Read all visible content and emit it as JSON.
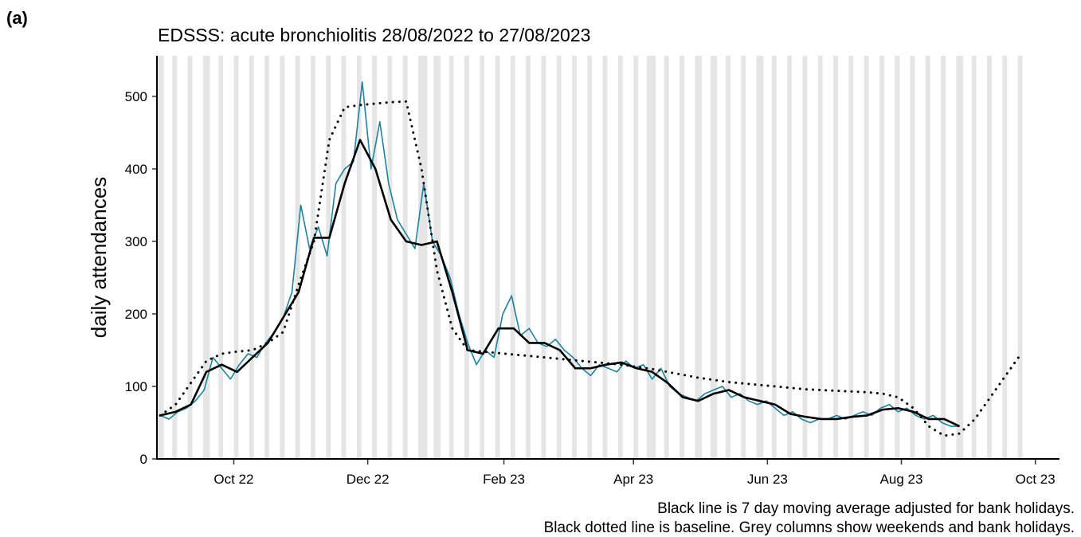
{
  "chart_data": {
    "type": "line",
    "panel_label": "(a)",
    "title": "EDSSS: acute bronchiolitis 28/08/2022 to 27/08/2023",
    "ylabel": "daily attendances",
    "caption": [
      "Black line is 7 day moving average adjusted for bank holidays.",
      "Black dotted line is baseline. Grey columns show weekends and bank holidays."
    ],
    "xlim": [
      "2022-08-27",
      "2023-10-12"
    ],
    "xticks": [
      {
        "value": "2022-10-01",
        "label": "Oct 22"
      },
      {
        "value": "2022-12-01",
        "label": "Dec 22"
      },
      {
        "value": "2023-02-01",
        "label": "Feb 23"
      },
      {
        "value": "2023-04-01",
        "label": "Apr 23"
      },
      {
        "value": "2023-06-01",
        "label": "Jun 23"
      },
      {
        "value": "2023-08-01",
        "label": "Aug 23"
      },
      {
        "value": "2023-10-01",
        "label": "Oct 23"
      }
    ],
    "ylim": [
      0,
      556
    ],
    "yticks": [
      0,
      100,
      200,
      300,
      400,
      500
    ],
    "shading": {
      "color": "#e5e5e5",
      "weekends": true,
      "bank_holidays": [
        "2022-08-29",
        "2022-09-19",
        "2022-12-26",
        "2022-12-27",
        "2023-01-02",
        "2023-04-07",
        "2023-04-10",
        "2023-05-01",
        "2023-05-08",
        "2023-05-29",
        "2023-08-28"
      ]
    },
    "series": [
      {
        "color": "#1a84a0",
        "line_style": "thin",
        "x": [
          "2022-08-28",
          "2022-09-01",
          "2022-09-05",
          "2022-09-09",
          "2022-09-13",
          "2022-09-17",
          "2022-09-21",
          "2022-09-25",
          "2022-09-29",
          "2022-10-03",
          "2022-10-07",
          "2022-10-11",
          "2022-10-15",
          "2022-10-19",
          "2022-10-23",
          "2022-10-27",
          "2022-10-31",
          "2022-11-04",
          "2022-11-08",
          "2022-11-12",
          "2022-11-16",
          "2022-11-20",
          "2022-11-24",
          "2022-11-28",
          "2022-12-02",
          "2022-12-06",
          "2022-12-10",
          "2022-12-14",
          "2022-12-18",
          "2022-12-22",
          "2022-12-26",
          "2022-12-30",
          "2023-01-03",
          "2023-01-07",
          "2023-01-11",
          "2023-01-15",
          "2023-01-19",
          "2023-01-23",
          "2023-01-27",
          "2023-01-31",
          "2023-02-04",
          "2023-02-08",
          "2023-02-12",
          "2023-02-16",
          "2023-02-20",
          "2023-02-24",
          "2023-02-28",
          "2023-03-04",
          "2023-03-08",
          "2023-03-12",
          "2023-03-16",
          "2023-03-20",
          "2023-03-24",
          "2023-03-28",
          "2023-04-01",
          "2023-04-05",
          "2023-04-09",
          "2023-04-13",
          "2023-04-17",
          "2023-04-21",
          "2023-04-25",
          "2023-04-29",
          "2023-05-03",
          "2023-05-07",
          "2023-05-11",
          "2023-05-15",
          "2023-05-19",
          "2023-05-23",
          "2023-05-27",
          "2023-05-31",
          "2023-06-04",
          "2023-06-08",
          "2023-06-12",
          "2023-06-16",
          "2023-06-20",
          "2023-06-24",
          "2023-06-28",
          "2023-07-02",
          "2023-07-06",
          "2023-07-10",
          "2023-07-14",
          "2023-07-18",
          "2023-07-22",
          "2023-07-26",
          "2023-07-30",
          "2023-08-03",
          "2023-08-07",
          "2023-08-11",
          "2023-08-15",
          "2023-08-19",
          "2023-08-23",
          "2023-08-27"
        ],
        "values": [
          60,
          55,
          65,
          70,
          80,
          95,
          140,
          125,
          110,
          130,
          145,
          140,
          160,
          175,
          195,
          230,
          350,
          290,
          320,
          280,
          380,
          400,
          410,
          520,
          400,
          465,
          380,
          330,
          310,
          290,
          380,
          300,
          280,
          250,
          200,
          160,
          130,
          150,
          140,
          200,
          225,
          170,
          180,
          160,
          155,
          165,
          150,
          140,
          125,
          115,
          130,
          125,
          120,
          135,
          125,
          130,
          110,
          125,
          100,
          90,
          85,
          80,
          90,
          95,
          100,
          85,
          90,
          80,
          75,
          80,
          70,
          60,
          65,
          55,
          50,
          55,
          55,
          60,
          55,
          60,
          65,
          60,
          70,
          75,
          65,
          70,
          60,
          55,
          60,
          50,
          45,
          45
        ]
      },
      {
        "color": "#000000",
        "line_style": "dotted",
        "x": [
          "2022-08-28",
          "2022-09-04",
          "2022-09-11",
          "2022-09-18",
          "2022-09-25",
          "2022-10-02",
          "2022-10-09",
          "2022-10-16",
          "2022-10-23",
          "2022-10-30",
          "2022-11-06",
          "2022-11-13",
          "2022-11-20",
          "2022-11-27",
          "2022-12-04",
          "2022-12-11",
          "2022-12-18",
          "2022-12-25",
          "2023-01-01",
          "2023-01-08",
          "2023-01-15",
          "2023-01-22",
          "2023-01-29",
          "2023-02-05",
          "2023-02-12",
          "2023-02-19",
          "2023-02-26",
          "2023-03-05",
          "2023-03-12",
          "2023-03-19",
          "2023-03-26",
          "2023-04-02",
          "2023-04-09",
          "2023-04-16",
          "2023-04-23",
          "2023-04-30",
          "2023-05-07",
          "2023-05-14",
          "2023-05-21",
          "2023-05-28",
          "2023-06-04",
          "2023-06-11",
          "2023-06-18",
          "2023-06-25",
          "2023-07-02",
          "2023-07-09",
          "2023-07-16",
          "2023-07-23",
          "2023-07-30",
          "2023-08-06",
          "2023-08-13",
          "2023-08-20",
          "2023-08-27",
          "2023-09-03",
          "2023-09-10",
          "2023-09-17",
          "2023-09-24"
        ],
        "values": [
          60,
          75,
          105,
          135,
          145,
          148,
          150,
          160,
          175,
          240,
          300,
          440,
          485,
          488,
          490,
          492,
          493,
          400,
          260,
          180,
          150,
          148,
          146,
          144,
          142,
          140,
          138,
          136,
          134,
          132,
          130,
          127,
          124,
          120,
          116,
          112,
          109,
          106,
          104,
          102,
          100,
          98,
          96,
          95,
          94,
          93,
          92,
          90,
          85,
          70,
          45,
          32,
          35,
          55,
          85,
          115,
          145
        ]
      },
      {
        "color": "#000000",
        "line_style": "solid",
        "x": [
          "2022-08-28",
          "2022-09-04",
          "2022-09-11",
          "2022-09-18",
          "2022-09-25",
          "2022-10-02",
          "2022-10-09",
          "2022-10-16",
          "2022-10-23",
          "2022-10-30",
          "2022-11-06",
          "2022-11-13",
          "2022-11-20",
          "2022-11-27",
          "2022-12-04",
          "2022-12-11",
          "2022-12-18",
          "2022-12-25",
          "2023-01-01",
          "2023-01-08",
          "2023-01-15",
          "2023-01-22",
          "2023-01-29",
          "2023-02-05",
          "2023-02-12",
          "2023-02-19",
          "2023-02-26",
          "2023-03-05",
          "2023-03-12",
          "2023-03-19",
          "2023-03-26",
          "2023-04-02",
          "2023-04-09",
          "2023-04-16",
          "2023-04-23",
          "2023-04-30",
          "2023-05-07",
          "2023-05-14",
          "2023-05-21",
          "2023-05-28",
          "2023-06-04",
          "2023-06-11",
          "2023-06-18",
          "2023-06-25",
          "2023-07-02",
          "2023-07-09",
          "2023-07-16",
          "2023-07-23",
          "2023-07-30",
          "2023-08-06",
          "2023-08-13",
          "2023-08-20",
          "2023-08-27"
        ],
        "values": [
          60,
          65,
          75,
          120,
          130,
          120,
          140,
          160,
          195,
          230,
          305,
          305,
          380,
          440,
          400,
          330,
          300,
          295,
          300,
          230,
          150,
          145,
          180,
          180,
          160,
          160,
          150,
          125,
          125,
          130,
          133,
          125,
          120,
          105,
          85,
          80,
          90,
          95,
          85,
          80,
          75,
          62,
          58,
          55,
          55,
          58,
          60,
          68,
          70,
          65,
          55,
          55,
          45
        ]
      }
    ]
  }
}
